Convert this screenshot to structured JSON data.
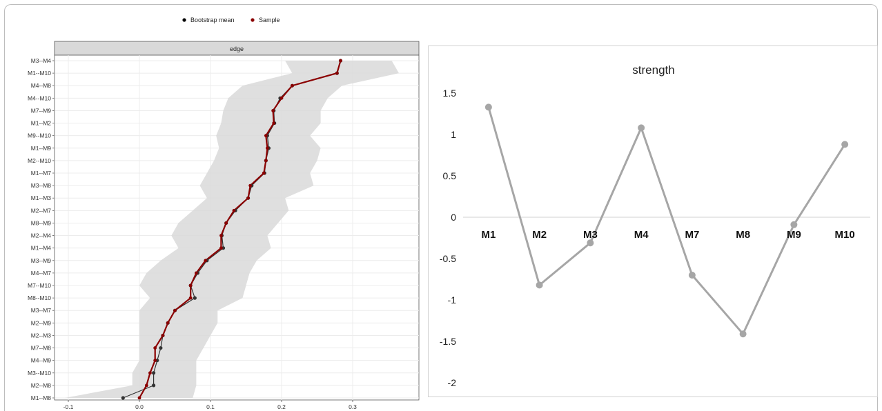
{
  "chart_data": [
    {
      "type": "line",
      "panel_title": "edge",
      "legend": [
        {
          "name": "Bootstrap mean",
          "color": "#000000"
        },
        {
          "name": "Sample",
          "color": "#8b0000"
        }
      ],
      "legend_position": "top",
      "orientation": "horizontal-values",
      "categories": [
        "M3--M4",
        "M1--M10",
        "M4--M8",
        "M4--M10",
        "M7--M9",
        "M1--M2",
        "M9--M10",
        "M1--M9",
        "M2--M10",
        "M1--M7",
        "M3--M8",
        "M1--M3",
        "M2--M7",
        "M8--M9",
        "M2--M4",
        "M1--M4",
        "M3--M9",
        "M4--M7",
        "M7--M10",
        "M8--M10",
        "M3--M7",
        "M2--M9",
        "M2--M3",
        "M7--M8",
        "M4--M9",
        "M3--M10",
        "M2--M8",
        "M1--M8"
      ],
      "series": [
        {
          "name": "Bootstrap mean",
          "color": "#333333",
          "values": [
            0.283,
            0.278,
            0.215,
            0.198,
            0.189,
            0.19,
            0.18,
            0.182,
            0.178,
            0.176,
            0.158,
            0.153,
            0.135,
            0.122,
            0.116,
            0.118,
            0.095,
            0.082,
            0.072,
            0.078,
            0.05,
            0.04,
            0.033,
            0.03,
            0.025,
            0.02,
            0.02,
            -0.023
          ]
        },
        {
          "name": "Sample",
          "color": "#8b0000",
          "values": [
            0.283,
            0.278,
            0.215,
            0.2,
            0.188,
            0.189,
            0.178,
            0.18,
            0.178,
            0.175,
            0.156,
            0.153,
            0.133,
            0.122,
            0.115,
            0.115,
            0.093,
            0.08,
            0.072,
            0.072,
            0.05,
            0.04,
            0.033,
            0.022,
            0.022,
            0.015,
            0.01,
            0.0
          ]
        }
      ],
      "ci_lower": [
        0.205,
        0.215,
        0.145,
        0.125,
        0.118,
        0.115,
        0.108,
        0.112,
        0.105,
        0.095,
        0.085,
        0.095,
        0.075,
        0.055,
        0.045,
        0.055,
        0.03,
        0.01,
        0.0,
        0.015,
        0.0,
        0.0,
        0.0,
        0.0,
        0.0,
        -0.01,
        -0.01,
        -0.105
      ],
      "ci_upper": [
        0.355,
        0.365,
        0.285,
        0.265,
        0.255,
        0.255,
        0.24,
        0.255,
        0.25,
        0.24,
        0.245,
        0.205,
        0.21,
        0.195,
        0.18,
        0.185,
        0.165,
        0.155,
        0.15,
        0.145,
        0.11,
        0.11,
        0.1,
        0.09,
        0.08,
        0.08,
        0.08,
        0.075
      ],
      "x_ticks": [
        "-0.1",
        "0.0",
        "0.1",
        "0.2",
        "0.3"
      ],
      "xlim": [
        -0.1,
        0.3
      ],
      "grid": true
    },
    {
      "type": "line",
      "title": "strength",
      "categories": [
        "M1",
        "M2",
        "M3",
        "M4",
        "M7",
        "M8",
        "M9",
        "M10"
      ],
      "values": [
        1.33,
        -0.82,
        -0.31,
        1.08,
        -0.7,
        -1.41,
        -0.09,
        0.88
      ],
      "y_ticks": [
        "1.5",
        "1",
        "0.5",
        "0",
        "-0.5",
        "-1",
        "-1.5",
        "-2"
      ],
      "ylim": [
        -2,
        1.5
      ],
      "color": "#a6a6a6",
      "grid": false
    }
  ]
}
